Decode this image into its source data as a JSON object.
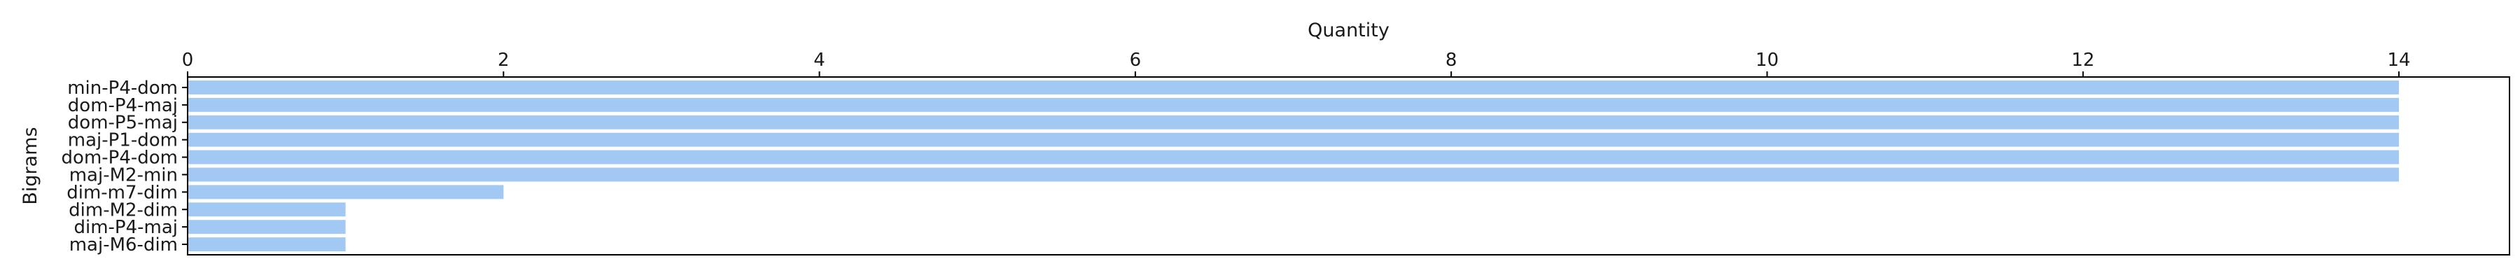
{
  "chart_data": {
    "type": "bar",
    "orientation": "horizontal",
    "xlabel": "Quantity",
    "ylabel": "Bigrams",
    "xaxis_position": "top",
    "xlim": [
      0,
      14.7
    ],
    "xticks": [
      0,
      2,
      4,
      6,
      8,
      10,
      12,
      14
    ],
    "grid": false,
    "bar_color": "#a1c9f4",
    "categories": [
      "min-P4-dom",
      "dom-P4-maj",
      "dom-P5-maj",
      "maj-P1-dom",
      "dom-P4-dom",
      "maj-M2-min",
      "dim-m7-dim",
      "dim-M2-dim",
      "dim-P4-maj",
      "maj-M6-dim"
    ],
    "values": [
      14,
      14,
      14,
      14,
      14,
      14,
      2,
      1,
      1,
      1
    ]
  }
}
